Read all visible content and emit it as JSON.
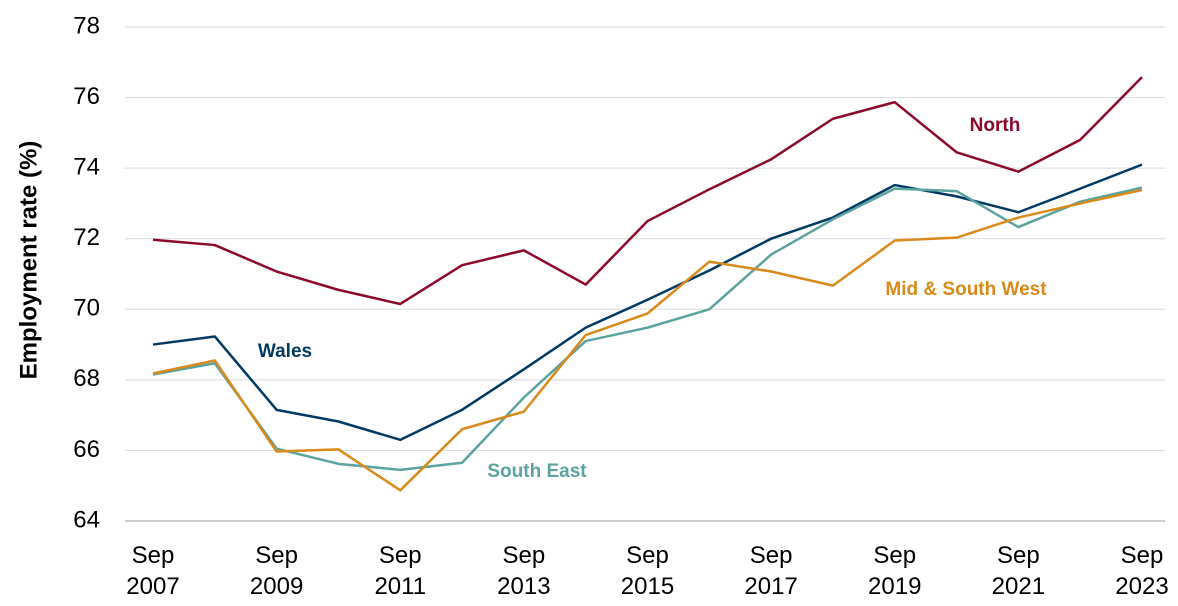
{
  "chart_data": {
    "type": "line",
    "y_label": "Employment rate (%)",
    "categories": [
      "Sep 2007",
      null,
      "Sep 2009",
      null,
      "Sep 2011",
      null,
      "Sep 2013",
      null,
      "Sep 2015",
      null,
      "Sep 2017",
      null,
      "Sep 2019",
      null,
      "Sep 2021",
      null,
      "Sep 2023"
    ],
    "series": [
      {
        "name": "North",
        "color": "#8b0a2a",
        "values": [
          71.97,
          71.82,
          71.07,
          70.55,
          70.15,
          71.25,
          71.67,
          70.7,
          72.5,
          73.4,
          74.25,
          75.4,
          75.87,
          74.45,
          73.9,
          74.8,
          76.58
        ]
      },
      {
        "name": "Wales",
        "color": "#003a63",
        "values": [
          69.0,
          69.23,
          67.15,
          66.82,
          66.3,
          67.15,
          68.3,
          69.48,
          70.27,
          71.1,
          72.0,
          72.6,
          73.52,
          73.2,
          72.75,
          73.42,
          74.1
        ]
      },
      {
        "name": "South East",
        "color": "#5ba3a0",
        "values": [
          68.15,
          68.47,
          66.05,
          65.62,
          65.45,
          65.65,
          67.5,
          69.1,
          69.48,
          70.0,
          71.55,
          72.55,
          73.42,
          73.35,
          72.33,
          73.05,
          73.45
        ]
      },
      {
        "name": "Mid & South West",
        "color": "#d98a1a",
        "values": [
          68.18,
          68.55,
          65.97,
          66.03,
          64.87,
          66.6,
          67.1,
          69.27,
          69.88,
          71.35,
          71.07,
          70.67,
          71.95,
          72.03,
          72.6,
          73.0,
          73.38
        ]
      }
    ],
    "ylim": [
      64,
      78
    ],
    "yticks": [
      64,
      66,
      68,
      70,
      72,
      74,
      76,
      78
    ],
    "grid": true
  }
}
